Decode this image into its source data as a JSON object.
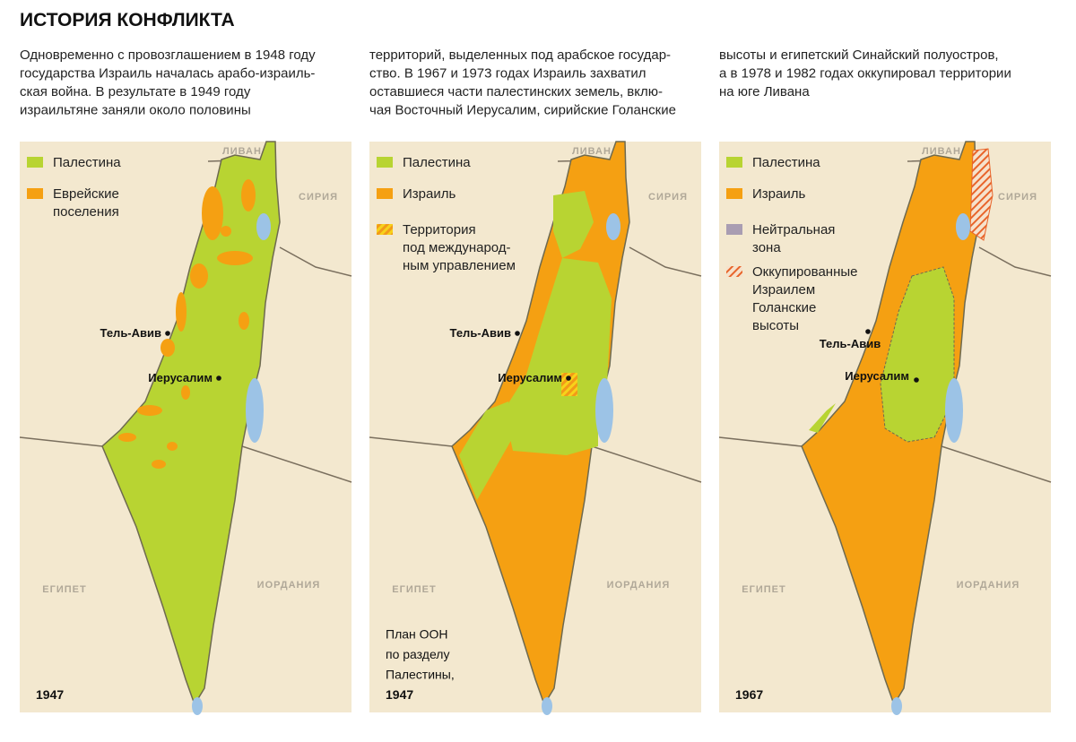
{
  "header": {
    "title": "ИСТОРИЯ КОНФЛИКТА"
  },
  "intro": {
    "columns": [
      [
        "Одновременно с провозглашением в 1948 году",
        "государства Израиль началась арабо-израиль-",
        "ская война. В результате в 1949 году",
        "израильтяне заняли около половины"
      ],
      [
        "территорий, выделенных под арабское государ-",
        "ство. В 1967 и 1973 годах Израиль захватил",
        "оставшиеся части палестинских земель, вклю-",
        "чая Восточный Иерусалим, сирийские Голанские"
      ],
      [
        "высоты и египетский Синайский полуостров,",
        "а в 1978 и 1982 годах оккупировал территории",
        "на юге Ливана"
      ]
    ]
  },
  "maps": [
    {
      "legend": [
        [
          "Палестина"
        ],
        [
          "Еврейские",
          "поселения"
        ]
      ],
      "labels": {
        "lebanon": "ЛИВАН",
        "syria": "СИРИЯ",
        "egypt": "ЕГИПЕТ",
        "jordan": "ИОРДАНИЯ"
      },
      "cities": [
        "Тель-Авив",
        "Иерусалим"
      ],
      "caption": [
        "1947"
      ]
    },
    {
      "legend": [
        [
          "Палестина"
        ],
        [
          "Израиль"
        ],
        [
          "Территория",
          "под международ-",
          "ным управлением"
        ]
      ],
      "labels": {
        "lebanon": "ЛИВАН",
        "syria": "СИРИЯ",
        "egypt": "ЕГИПЕТ",
        "jordan": "ИОРДАНИЯ"
      },
      "cities": [
        "Тель-Авив",
        "Иерусалим"
      ],
      "caption": [
        "План ООН",
        "по разделу",
        "Палестины,",
        "1947"
      ]
    },
    {
      "legend": [
        [
          "Палестина"
        ],
        [
          "Израиль"
        ],
        [
          "Нейтральная",
          "зона"
        ],
        [
          "Оккупированные",
          "Израилем",
          "Голанские",
          "высоты"
        ]
      ],
      "labels": {
        "lebanon": "ЛИВАН",
        "syria": "СИРИЯ",
        "egypt": "ЕГИПЕТ",
        "jordan": "ИОРДАНИЯ"
      },
      "cities": [
        "Тель-Авив",
        "Иерусалим"
      ],
      "caption": [
        "1967"
      ]
    }
  ]
}
